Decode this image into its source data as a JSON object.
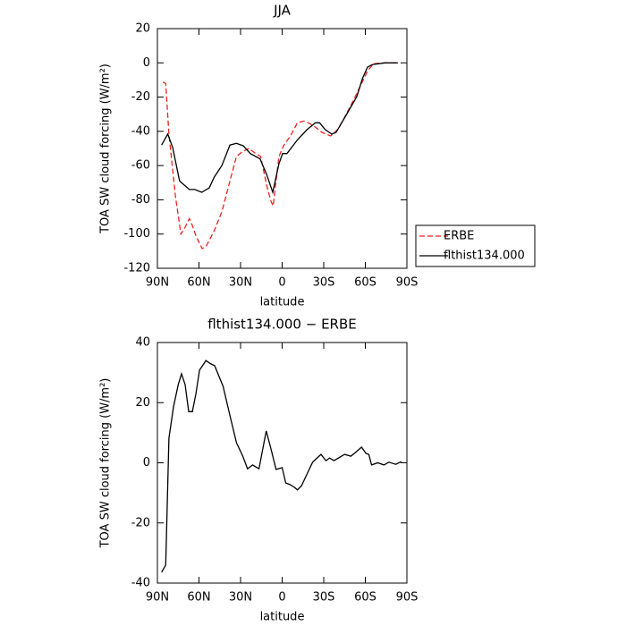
{
  "chart_data": [
    {
      "type": "line",
      "title": "JJA",
      "xlabel": "latitude",
      "ylabel": "TOA SW cloud forcing (W/m²)",
      "xlim": [
        90,
        -90
      ],
      "ylim": [
        20,
        -120
      ],
      "xticks": [
        {
          "value": 90,
          "label": "90N"
        },
        {
          "value": 60,
          "label": "60N"
        },
        {
          "value": 30,
          "label": "30N"
        },
        0,
        {
          "value": -30,
          "label": "30S"
        },
        {
          "value": -60,
          "label": "60S"
        },
        {
          "value": -90,
          "label": "90S"
        }
      ],
      "yticks": [
        20,
        0,
        -20,
        -40,
        -60,
        -80,
        -100,
        -120
      ],
      "legend": "right",
      "series": [
        {
          "name": "ERBE",
          "color": "#ee2222",
          "line_style": "dashed",
          "x": [
            86,
            84,
            81.7,
            77,
            73,
            70,
            67,
            64.8,
            62,
            57.7,
            54.7,
            49,
            43.5,
            37.7,
            33,
            29,
            24,
            19.7,
            15.5,
            11,
            8,
            6.5,
            2.3,
            -1.3,
            -5.8,
            -11,
            -15.6,
            -19,
            -24,
            -28.7,
            -35,
            -40,
            -44.4,
            -51,
            -57,
            -61.6,
            -66,
            -74,
            -83.5
          ],
          "values": [
            -11.3,
            -12,
            -41.6,
            -78,
            -100,
            -96,
            -91,
            -95,
            -101.5,
            -108.5,
            -107,
            -98,
            -87,
            -69,
            -54.7,
            -52,
            -50,
            -52.6,
            -54.7,
            -72,
            -81,
            -83.5,
            -54.7,
            -48,
            -43,
            -35,
            -34,
            -35,
            -37.5,
            -40.6,
            -42.7,
            -39,
            -32.8,
            -22.5,
            -12.5,
            -4.7,
            -0.5,
            0,
            0
          ]
        },
        {
          "name": "flthist134.000",
          "color": "#000000",
          "line_style": "solid",
          "x": [
            87,
            82.5,
            79,
            74,
            67,
            63,
            58,
            52.6,
            49,
            43.5,
            37.7,
            33,
            28,
            23,
            16,
            11.3,
            6.8,
            2.3,
            -0.3,
            -3.5,
            -11,
            -18,
            -24,
            -27,
            -31,
            -35.8,
            -39,
            -48.7,
            -53.9,
            -58,
            -61.6,
            -65,
            -74,
            -83.5
          ],
          "values": [
            -48,
            -41.6,
            -49.5,
            -69,
            -74,
            -74,
            -75.6,
            -73,
            -66.7,
            -60,
            -48,
            -47,
            -48.5,
            -53,
            -56,
            -65,
            -75.6,
            -59,
            -53,
            -53,
            -45,
            -39,
            -35,
            -35,
            -39,
            -41.6,
            -40.6,
            -27,
            -19.7,
            -9,
            -2.5,
            -1,
            0,
            0
          ]
        }
      ]
    },
    {
      "type": "line",
      "title": "flthist134.000 − ERBE",
      "xlabel": "latitude",
      "ylabel": "TOA SW cloud forcing (W/m²)",
      "xlim": [
        90,
        -90
      ],
      "ylim": [
        40,
        -40
      ],
      "xticks": [
        {
          "value": 90,
          "label": "90N"
        },
        {
          "value": 60,
          "label": "60N"
        },
        {
          "value": 30,
          "label": "30N"
        },
        0,
        {
          "value": -30,
          "label": "30S"
        },
        {
          "value": -60,
          "label": "60S"
        },
        {
          "value": -90,
          "label": "90S"
        }
      ],
      "yticks": [
        40,
        20,
        0,
        -20,
        -40
      ],
      "series": [
        {
          "color": "#000000",
          "line_style": "solid",
          "x": [
            87,
            84,
            81.7,
            78.4,
            75,
            72.6,
            70,
            67.4,
            64.8,
            62.2,
            59.6,
            55,
            51.9,
            48.7,
            42.6,
            37.6,
            33,
            28.4,
            25,
            21.3,
            16.7,
            11.5,
            8.4,
            4.4,
            0,
            -2.6,
            -5.8,
            -9,
            -11,
            -14,
            -18,
            -22,
            -28,
            -31.6,
            -34.2,
            -37.4,
            -45,
            -49.6,
            -52.8,
            -57.3,
            -60.5,
            -62.5,
            -64.5,
            -69,
            -73.5,
            -77,
            -82,
            -86
          ],
          "values": [
            -36.4,
            -34,
            8.2,
            18.6,
            26,
            29.6,
            26,
            17,
            17,
            23,
            30.8,
            34,
            33,
            32.3,
            25.4,
            15.6,
            6.7,
            2.2,
            -2,
            -0.7,
            -2,
            10.6,
            5.2,
            -2.2,
            -1.6,
            -6.7,
            -7.3,
            -8.2,
            -9,
            -7.6,
            -3.7,
            0.2,
            2.8,
            0.7,
            1.6,
            0.7,
            2.8,
            2.2,
            3.4,
            5.2,
            3.1,
            2.8,
            -0.7,
            0,
            -0.7,
            0.2,
            -0.5,
            0.4
          ]
        }
      ]
    }
  ]
}
